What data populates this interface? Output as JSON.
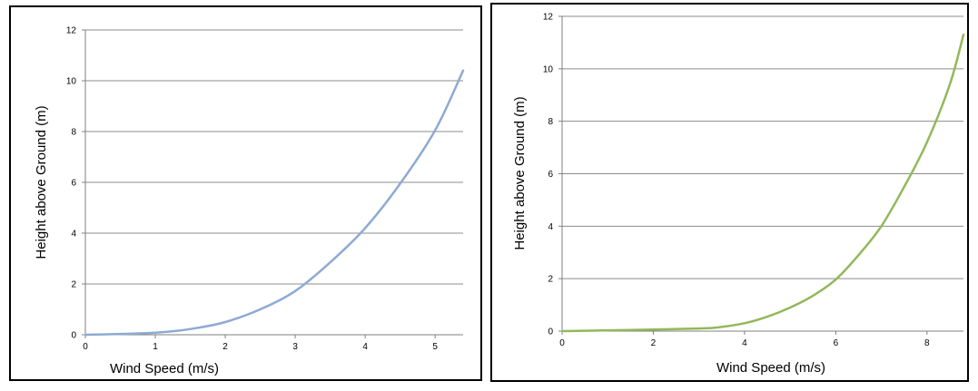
{
  "chart_data": [
    {
      "type": "line",
      "title": "",
      "xlabel": "Wind Speed  (m/s)",
      "ylabel": "Height above Ground  (m)",
      "xlim": [
        0,
        5.4
      ],
      "ylim": [
        0,
        12
      ],
      "xticks": [
        0,
        1,
        2,
        3,
        4,
        5
      ],
      "yticks": [
        0,
        2,
        4,
        6,
        8,
        10,
        12
      ],
      "grid": "horizontal",
      "line_color": "#8eaad3",
      "series": [
        {
          "x": [
            0,
            0.5,
            1.0,
            1.3,
            1.6,
            2.0,
            2.5,
            3.0,
            3.5,
            4.0,
            4.5,
            5.0,
            5.4
          ],
          "y": [
            0,
            0.03,
            0.08,
            0.15,
            0.27,
            0.5,
            1.0,
            1.72,
            2.85,
            4.2,
            5.95,
            8.05,
            10.4
          ]
        }
      ]
    },
    {
      "type": "line",
      "title": "",
      "xlabel": "Wind Speed  (m/s)",
      "ylabel": "Height above Ground  (m)",
      "xlim": [
        0,
        8.8
      ],
      "ylim": [
        0,
        12
      ],
      "xticks": [
        0,
        2,
        4,
        6,
        8
      ],
      "yticks": [
        0,
        2,
        4,
        6,
        8,
        10,
        12
      ],
      "grid": "horizontal",
      "line_color": "#93b85a",
      "series": [
        {
          "x": [
            0,
            1,
            2,
            3,
            3.4,
            4.0,
            4.5,
            5.0,
            5.5,
            6.0,
            6.5,
            7.0,
            7.5,
            8.0,
            8.5,
            8.8
          ],
          "y": [
            0,
            0.03,
            0.06,
            0.1,
            0.14,
            0.3,
            0.55,
            0.9,
            1.35,
            1.97,
            2.9,
            4.0,
            5.5,
            7.2,
            9.4,
            11.3
          ]
        }
      ]
    }
  ]
}
